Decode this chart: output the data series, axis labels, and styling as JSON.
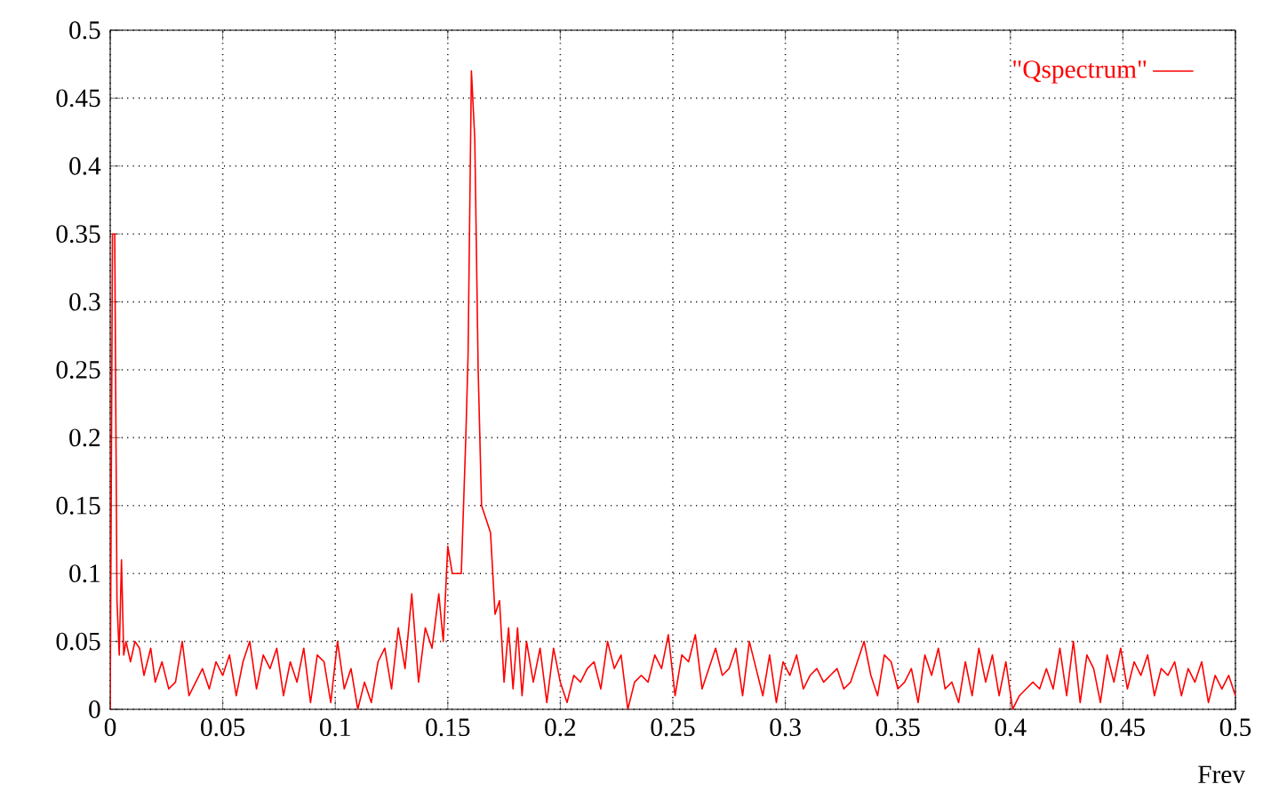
{
  "chart_data": {
    "type": "line",
    "xlabel": "Frev",
    "grid": true,
    "legend": "top right",
    "xlim": [
      0,
      0.5
    ],
    "ylim": [
      0,
      0.5
    ],
    "xticks": [
      0,
      0.05,
      0.1,
      0.15,
      0.2,
      0.25,
      0.3,
      0.35,
      0.4,
      0.45,
      0.5
    ],
    "yticks": [
      0,
      0.05,
      0.1,
      0.15,
      0.2,
      0.25,
      0.3,
      0.35,
      0.4,
      0.45,
      0.5
    ],
    "x": [
      0,
      0.001,
      0.002,
      0.003,
      0.004,
      0.005,
      0.006,
      0.007,
      0.009,
      0.011,
      0.013,
      0.015,
      0.018,
      0.02,
      0.023,
      0.026,
      0.029,
      0.032,
      0.035,
      0.038,
      0.041,
      0.044,
      0.047,
      0.05,
      0.053,
      0.056,
      0.059,
      0.062,
      0.065,
      0.068,
      0.071,
      0.074,
      0.077,
      0.08,
      0.083,
      0.086,
      0.089,
      0.092,
      0.095,
      0.098,
      0.101,
      0.104,
      0.107,
      0.11,
      0.113,
      0.116,
      0.119,
      0.122,
      0.125,
      0.128,
      0.131,
      0.134,
      0.137,
      0.14,
      0.143,
      0.146,
      0.148,
      0.15,
      0.152,
      0.154,
      0.156,
      0.158,
      0.159,
      0.1605,
      0.162,
      0.1635,
      0.165,
      0.167,
      0.169,
      0.171,
      0.173,
      0.175,
      0.177,
      0.179,
      0.181,
      0.183,
      0.185,
      0.188,
      0.191,
      0.194,
      0.197,
      0.2,
      0.203,
      0.206,
      0.209,
      0.212,
      0.215,
      0.218,
      0.221,
      0.224,
      0.227,
      0.23,
      0.233,
      0.236,
      0.239,
      0.242,
      0.245,
      0.248,
      0.251,
      0.254,
      0.257,
      0.26,
      0.263,
      0.266,
      0.269,
      0.272,
      0.275,
      0.278,
      0.281,
      0.284,
      0.287,
      0.29,
      0.293,
      0.296,
      0.299,
      0.302,
      0.305,
      0.308,
      0.311,
      0.314,
      0.317,
      0.32,
      0.323,
      0.326,
      0.329,
      0.332,
      0.335,
      0.338,
      0.341,
      0.344,
      0.347,
      0.35,
      0.353,
      0.356,
      0.359,
      0.362,
      0.365,
      0.368,
      0.371,
      0.374,
      0.377,
      0.38,
      0.383,
      0.386,
      0.389,
      0.392,
      0.395,
      0.398,
      0.401,
      0.404,
      0.407,
      0.41,
      0.413,
      0.416,
      0.419,
      0.422,
      0.425,
      0.428,
      0.431,
      0.434,
      0.437,
      0.44,
      0.443,
      0.446,
      0.449,
      0.452,
      0.455,
      0.458,
      0.461,
      0.464,
      0.467,
      0.47,
      0.473,
      0.476,
      0.479,
      0.482,
      0.485,
      0.488,
      0.491,
      0.494,
      0.497,
      0.5
    ],
    "series": [
      {
        "name": "\"Qspectrum\"",
        "color": "#ff0000",
        "values": [
          0,
          0.35,
          0.35,
          0.08,
          0.04,
          0.11,
          0.04,
          0.05,
          0.035,
          0.05,
          0.045,
          0.025,
          0.045,
          0.02,
          0.035,
          0.015,
          0.02,
          0.05,
          0.01,
          0.02,
          0.03,
          0.015,
          0.035,
          0.025,
          0.04,
          0.01,
          0.035,
          0.05,
          0.015,
          0.04,
          0.03,
          0.045,
          0.01,
          0.035,
          0.02,
          0.045,
          0.005,
          0.04,
          0.035,
          0.005,
          0.05,
          0.015,
          0.03,
          0.0,
          0.02,
          0.005,
          0.035,
          0.045,
          0.015,
          0.06,
          0.03,
          0.085,
          0.02,
          0.06,
          0.045,
          0.085,
          0.05,
          0.12,
          0.1,
          0.1,
          0.1,
          0.2,
          0.26,
          0.47,
          0.42,
          0.25,
          0.15,
          0.14,
          0.13,
          0.07,
          0.08,
          0.02,
          0.06,
          0.015,
          0.06,
          0.01,
          0.05,
          0.02,
          0.045,
          0.005,
          0.045,
          0.02,
          0.005,
          0.025,
          0.02,
          0.03,
          0.035,
          0.015,
          0.05,
          0.03,
          0.04,
          0.0,
          0.02,
          0.025,
          0.02,
          0.04,
          0.03,
          0.055,
          0.01,
          0.04,
          0.035,
          0.055,
          0.015,
          0.03,
          0.045,
          0.025,
          0.03,
          0.045,
          0.01,
          0.05,
          0.03,
          0.01,
          0.04,
          0.005,
          0.035,
          0.025,
          0.04,
          0.015,
          0.025,
          0.03,
          0.02,
          0.025,
          0.03,
          0.015,
          0.02,
          0.035,
          0.05,
          0.025,
          0.01,
          0.04,
          0.035,
          0.015,
          0.02,
          0.03,
          0.005,
          0.04,
          0.025,
          0.045,
          0.015,
          0.02,
          0.005,
          0.035,
          0.01,
          0.045,
          0.02,
          0.04,
          0.01,
          0.035,
          0.0,
          0.01,
          0.015,
          0.02,
          0.015,
          0.03,
          0.015,
          0.045,
          0.01,
          0.05,
          0.005,
          0.04,
          0.03,
          0.005,
          0.04,
          0.02,
          0.045,
          0.015,
          0.035,
          0.025,
          0.04,
          0.01,
          0.03,
          0.025,
          0.035,
          0.01,
          0.03,
          0.02,
          0.035,
          0.005,
          0.025,
          0.015,
          0.025,
          0.01
        ]
      }
    ]
  }
}
